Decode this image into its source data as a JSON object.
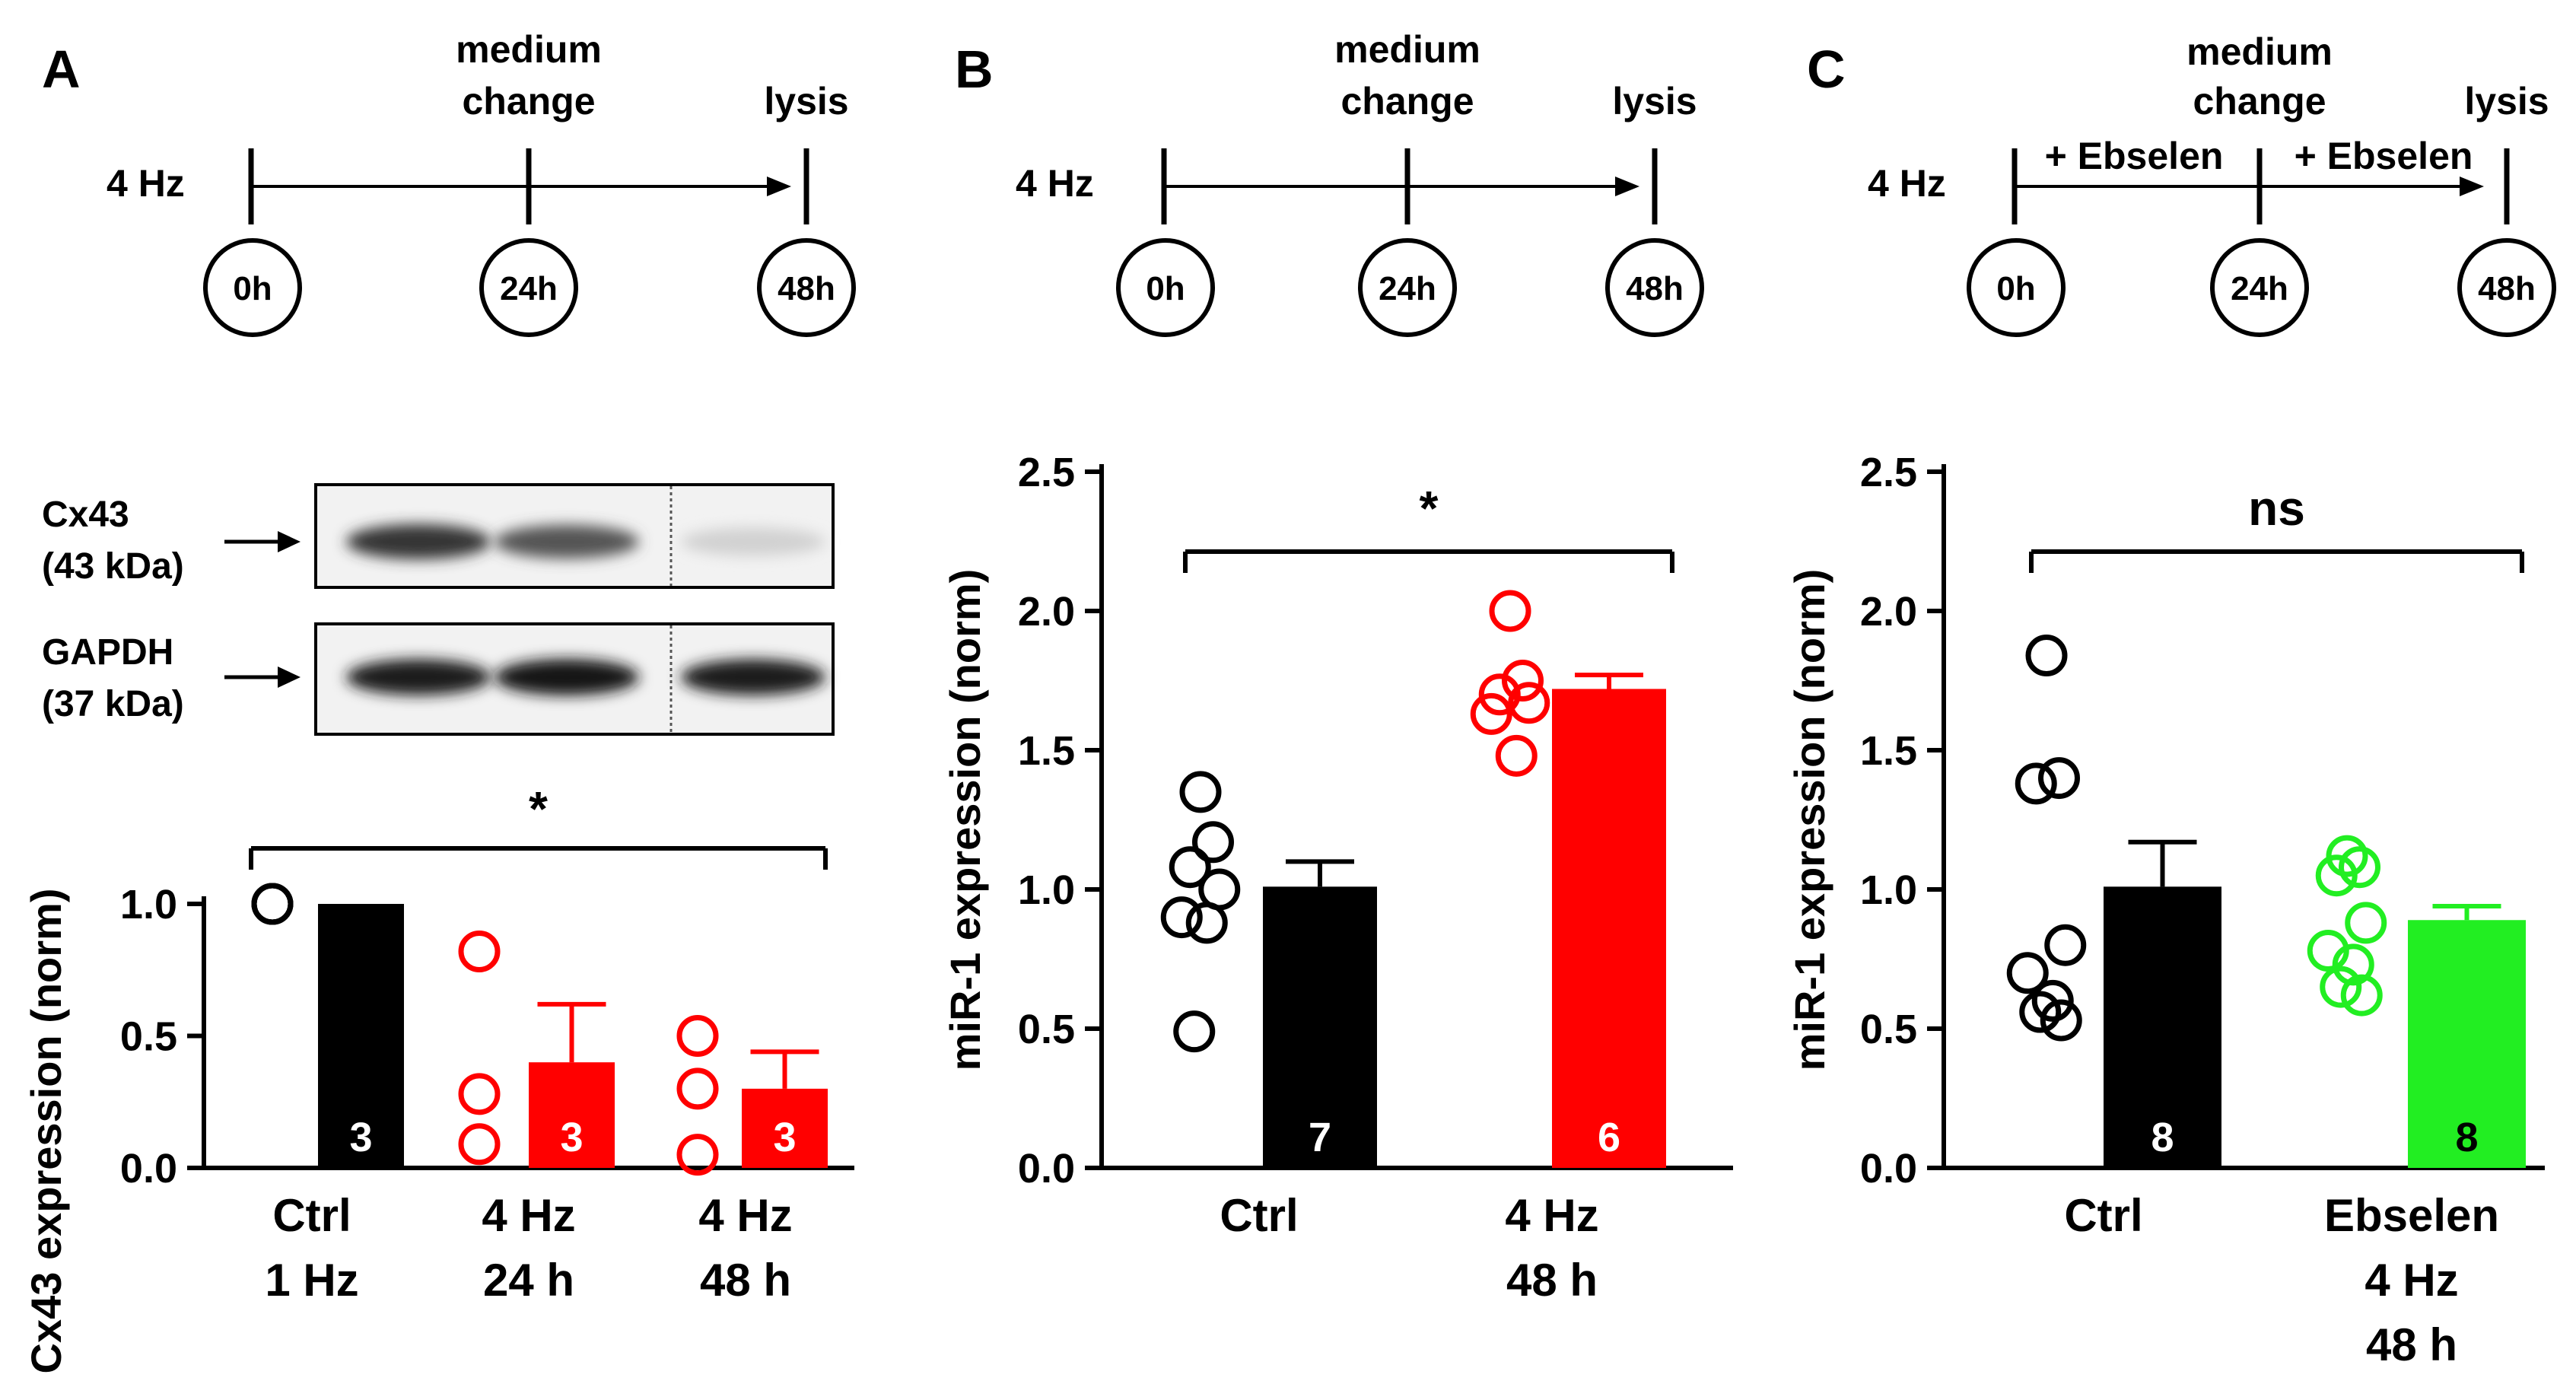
{
  "colors": {
    "black": "#000000",
    "red": "#ff0000",
    "green": "#22ee22",
    "white": "#ffffff"
  },
  "panels": {
    "A": {
      "label": "A",
      "timeline": {
        "start_label": "4 Hz",
        "medium_change_line1": "medium",
        "medium_change_line2": "change",
        "end_label": "lysis",
        "times": [
          "0h",
          "24h",
          "48h"
        ],
        "treatment_labels": []
      },
      "western_blot": {
        "bands": [
          {
            "protein_line1": "Cx43",
            "protein_line2": "(43 kDa)",
            "intensities": [
              0.85,
              0.7,
              0.12
            ]
          },
          {
            "protein_line1": "GAPDH",
            "protein_line2": "(37 kDa)",
            "intensities": [
              0.95,
              1.0,
              0.95
            ]
          }
        ]
      }
    },
    "B": {
      "label": "B",
      "timeline": {
        "start_label": "4 Hz",
        "medium_change_line1": "medium",
        "medium_change_line2": "change",
        "end_label": "lysis",
        "times": [
          "0h",
          "24h",
          "48h"
        ],
        "treatment_labels": []
      }
    },
    "C": {
      "label": "C",
      "timeline": {
        "start_label": "4 Hz",
        "medium_change_line1": "medium",
        "medium_change_line2": "change",
        "end_label": "lysis",
        "times": [
          "0h",
          "24h",
          "48h"
        ],
        "treatment_labels": [
          "+ Ebselen",
          "+ Ebselen"
        ]
      }
    }
  },
  "chart_data": [
    {
      "type": "bar",
      "panel": "A",
      "ylabel": "Cx43 expression (norm)",
      "ylim": [
        0,
        1.0
      ],
      "yticks": [
        "0.0",
        "0.5",
        "1.0"
      ],
      "significance": "*",
      "categories": [
        [
          "Ctrl",
          "1 Hz"
        ],
        [
          "4 Hz",
          "24 h"
        ],
        [
          "4 Hz",
          "48 h"
        ]
      ],
      "bars": [
        {
          "value": 1.0,
          "error": 0.0,
          "n": "3",
          "color": "black",
          "points": [
            1.0,
            1.0,
            1.0
          ]
        },
        {
          "value": 0.4,
          "error": 0.22,
          "n": "3",
          "color": "red",
          "points": [
            0.82,
            0.28,
            0.09
          ]
        },
        {
          "value": 0.3,
          "error": 0.14,
          "n": "3",
          "color": "red",
          "points": [
            0.5,
            0.3,
            0.05
          ]
        }
      ]
    },
    {
      "type": "bar",
      "panel": "B",
      "ylabel": "miR-1 expression (norm)",
      "ylim": [
        0,
        2.5
      ],
      "yticks": [
        "0.0",
        "0.5",
        "1.0",
        "1.5",
        "2.0",
        "2.5"
      ],
      "significance": "*",
      "categories": [
        [
          "Ctrl"
        ],
        [
          "4 Hz",
          "48 h"
        ]
      ],
      "bars": [
        {
          "value": 1.01,
          "error": 0.09,
          "n": "7",
          "color": "black",
          "points": [
            1.35,
            1.17,
            1.08,
            1.0,
            0.9,
            0.88,
            0.49
          ]
        },
        {
          "value": 1.72,
          "error": 0.05,
          "n": "6",
          "color": "red",
          "points": [
            2.0,
            1.75,
            1.7,
            1.67,
            1.63,
            1.48
          ]
        }
      ]
    },
    {
      "type": "bar",
      "panel": "C",
      "ylabel": "miR-1 expression (norm)",
      "ylim": [
        0,
        2.5
      ],
      "yticks": [
        "0.0",
        "0.5",
        "1.0",
        "1.5",
        "2.0",
        "2.5"
      ],
      "significance": "ns",
      "categories": [
        [
          "Ctrl"
        ],
        [
          "Ebselen",
          "4 Hz",
          "48 h"
        ]
      ],
      "bars": [
        {
          "value": 1.01,
          "error": 0.16,
          "n": "8",
          "color": "black",
          "points": [
            1.84,
            1.4,
            1.38,
            0.8,
            0.7,
            0.6,
            0.56,
            0.53
          ]
        },
        {
          "value": 0.89,
          "error": 0.05,
          "n": "8",
          "color": "green",
          "points": [
            1.12,
            1.08,
            1.05,
            0.88,
            0.78,
            0.73,
            0.65,
            0.62
          ]
        }
      ]
    }
  ]
}
